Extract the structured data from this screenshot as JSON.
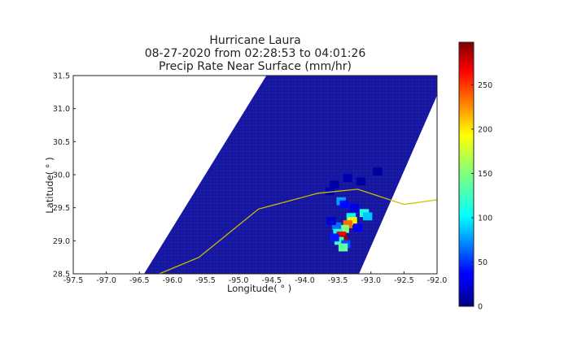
{
  "chart_data": {
    "type": "heatmap",
    "title_lines": [
      "Hurricane Laura",
      "08-27-2020 from 02:28:53 to 04:01:26",
      "Precip Rate Near Surface (mm/hr)"
    ],
    "xlabel": "Longitude( ° )",
    "ylabel": "Latitude( ° )",
    "xlim": [
      -97.5,
      -92.0
    ],
    "ylim": [
      28.5,
      31.5
    ],
    "xticks": [
      "-97.5",
      "-97.0",
      "-96.5",
      "-96.0",
      "-95.5",
      "-95.0",
      "-94.5",
      "-94.0",
      "-93.5",
      "-93.0",
      "-92.5",
      "-92.0"
    ],
    "xtick_values": [
      -97.5,
      -97.0,
      -96.5,
      -96.0,
      -95.5,
      -95.0,
      -94.5,
      -94.0,
      -93.5,
      -93.0,
      -92.5,
      -92.0
    ],
    "yticks": [
      "28.5",
      "29.0",
      "29.5",
      "30.0",
      "30.5",
      "31.0",
      "31.5"
    ],
    "ytick_values": [
      28.5,
      29.0,
      29.5,
      30.0,
      30.5,
      31.0,
      31.5
    ],
    "colorbar": {
      "ticks": [
        "0",
        "50",
        "100",
        "150",
        "200",
        "250"
      ],
      "tick_values": [
        0,
        50,
        100,
        150,
        200,
        250
      ],
      "range": [
        0,
        298
      ],
      "colormap": "jet"
    },
    "swath_corners": [
      [
        -96.43,
        28.5
      ],
      [
        -93.18,
        28.5
      ],
      [
        -92.0,
        31.2
      ],
      [
        -92.0,
        31.5
      ],
      [
        -94.58,
        31.5
      ]
    ],
    "track": {
      "color": "#c8c000",
      "points": [
        [
          -96.2,
          28.5
        ],
        [
          -95.6,
          28.75
        ],
        [
          -94.7,
          29.48
        ],
        [
          -93.8,
          29.72
        ],
        [
          -93.2,
          29.78
        ],
        [
          -92.5,
          29.55
        ],
        [
          -92.0,
          29.62
        ]
      ]
    },
    "precip_cells": [
      {
        "lon": -93.62,
        "lat": 29.75,
        "value": 15
      },
      {
        "lon": -93.55,
        "lat": 29.85,
        "value": 12
      },
      {
        "lon": -93.35,
        "lat": 29.95,
        "value": 14
      },
      {
        "lon": -93.15,
        "lat": 29.9,
        "value": 10
      },
      {
        "lon": -92.9,
        "lat": 30.05,
        "value": 8
      },
      {
        "lon": -93.45,
        "lat": 29.6,
        "value": 85
      },
      {
        "lon": -93.4,
        "lat": 29.55,
        "value": 40
      },
      {
        "lon": -93.25,
        "lat": 29.5,
        "value": 30
      },
      {
        "lon": -93.1,
        "lat": 29.42,
        "value": 120
      },
      {
        "lon": -93.05,
        "lat": 29.37,
        "value": 95
      },
      {
        "lon": -93.3,
        "lat": 29.36,
        "value": 110
      },
      {
        "lon": -93.28,
        "lat": 29.3,
        "value": 190
      },
      {
        "lon": -93.35,
        "lat": 29.25,
        "value": 230
      },
      {
        "lon": -93.4,
        "lat": 29.18,
        "value": 150
      },
      {
        "lon": -93.52,
        "lat": 29.22,
        "value": 70
      },
      {
        "lon": -93.5,
        "lat": 29.12,
        "value": 120
      },
      {
        "lon": -93.45,
        "lat": 29.08,
        "value": 260
      },
      {
        "lon": -93.42,
        "lat": 29.02,
        "value": 290
      },
      {
        "lon": -93.48,
        "lat": 29.0,
        "value": 130
      },
      {
        "lon": -93.38,
        "lat": 28.95,
        "value": 60
      },
      {
        "lon": -93.42,
        "lat": 28.9,
        "value": 140
      },
      {
        "lon": -93.55,
        "lat": 29.05,
        "value": 45
      },
      {
        "lon": -93.2,
        "lat": 29.2,
        "value": 35
      },
      {
        "lon": -93.6,
        "lat": 29.3,
        "value": 25
      }
    ]
  }
}
